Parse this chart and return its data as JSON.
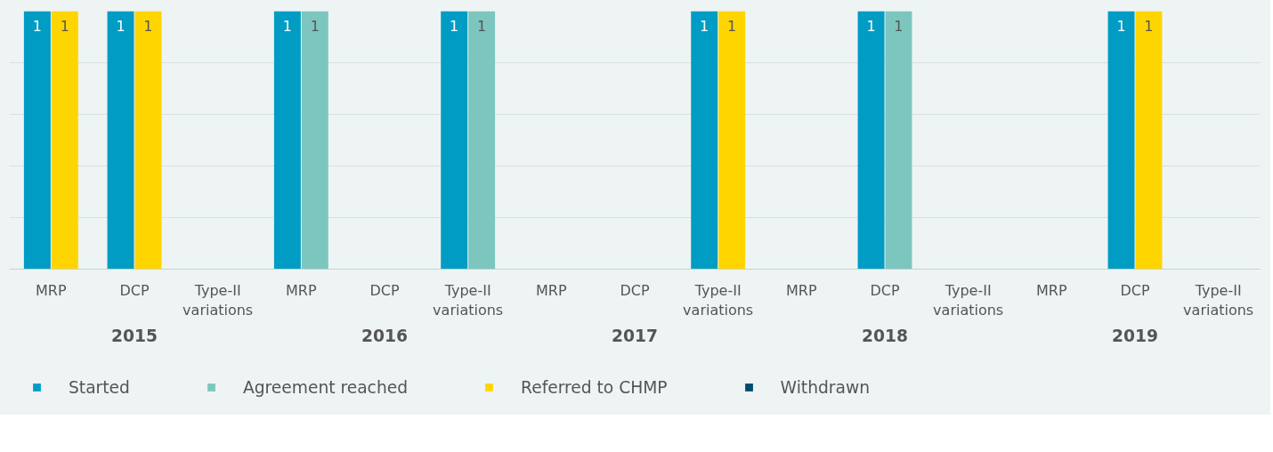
{
  "chart_data": {
    "type": "bar",
    "data_labels": true,
    "grid": "y",
    "legend": "bottom",
    "tick_labels": "x",
    "ylim": [
      0,
      1
    ],
    "categories": [
      "MRP",
      "DCP",
      "Type-II variations",
      "MRP",
      "DCP",
      "Type-II variations",
      "MRP",
      "DCP",
      "Type-II variations",
      "MRP",
      "DCP",
      "Type-II variations",
      "MRP",
      "DCP",
      "Type-II variations"
    ],
    "annotations": [
      "2015",
      "2016",
      "2017",
      "2018",
      "2019"
    ],
    "series": [
      {
        "name": "Started",
        "color": "#009cc4",
        "values": [
          1,
          1,
          null,
          1,
          null,
          1,
          null,
          null,
          1,
          null,
          1,
          null,
          null,
          1,
          null
        ]
      },
      {
        "name": "Agreement reached",
        "color": "#7cc6bf",
        "values": [
          null,
          null,
          null,
          1,
          null,
          1,
          null,
          null,
          null,
          null,
          1,
          null,
          null,
          null,
          null
        ]
      },
      {
        "name": "Referred to CHMP",
        "color": "#ffd500",
        "values": [
          1,
          1,
          null,
          null,
          null,
          null,
          null,
          null,
          1,
          null,
          null,
          null,
          null,
          1,
          null
        ]
      },
      {
        "name": "Withdrawn",
        "color": "#004b6e",
        "values": [
          null,
          null,
          null,
          null,
          null,
          null,
          null,
          null,
          null,
          null,
          null,
          null,
          null,
          null,
          null
        ]
      }
    ]
  }
}
